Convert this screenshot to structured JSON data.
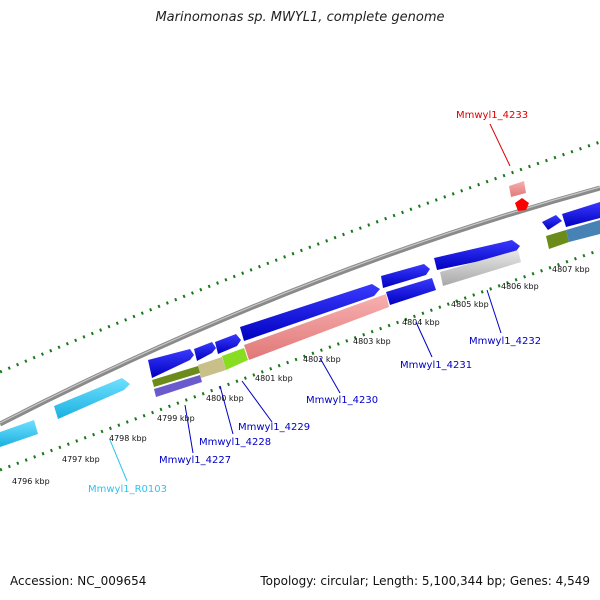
{
  "title": "Marinomonas sp. MWYL1, complete genome",
  "footer": {
    "accession": "Accession: NC_009654",
    "summary": "Topology: circular; Length: 5,100,344 bp; Genes: 4,549"
  },
  "colors": {
    "cds": "#0000e6",
    "rrna": "#2ec4f0",
    "pseudo": "#e83030",
    "backbone": "#8a8a8a",
    "ticks": "#1a7a1a"
  },
  "scale": {
    "ticks": [
      "4796 kbp",
      "4797 kbp",
      "4798 kbp",
      "4799 kbp",
      "4800 kbp",
      "4801 kbp",
      "4802 kbp",
      "4803 kbp",
      "4804 kbp",
      "4805 kbp",
      "4806 kbp",
      "4807 kbp"
    ]
  },
  "gene_labels": [
    {
      "id": "r0103",
      "text": "Mmwyl1_R0103",
      "color": "#2ec4f0"
    },
    {
      "id": "4227",
      "text": "Mmwyl1_4227",
      "color": "#0000c8"
    },
    {
      "id": "4228",
      "text": "Mmwyl1_4228",
      "color": "#0000c8"
    },
    {
      "id": "4229",
      "text": "Mmwyl1_4229",
      "color": "#0000c8"
    },
    {
      "id": "4230",
      "text": "Mmwyl1_4230",
      "color": "#0000c8"
    },
    {
      "id": "4231",
      "text": "Mmwyl1_4231",
      "color": "#0000c8"
    },
    {
      "id": "4232",
      "text": "Mmwyl1_4232",
      "color": "#0000c8"
    },
    {
      "id": "4233",
      "text": "Mmwyl1_4233",
      "color": "#e00000"
    }
  ]
}
